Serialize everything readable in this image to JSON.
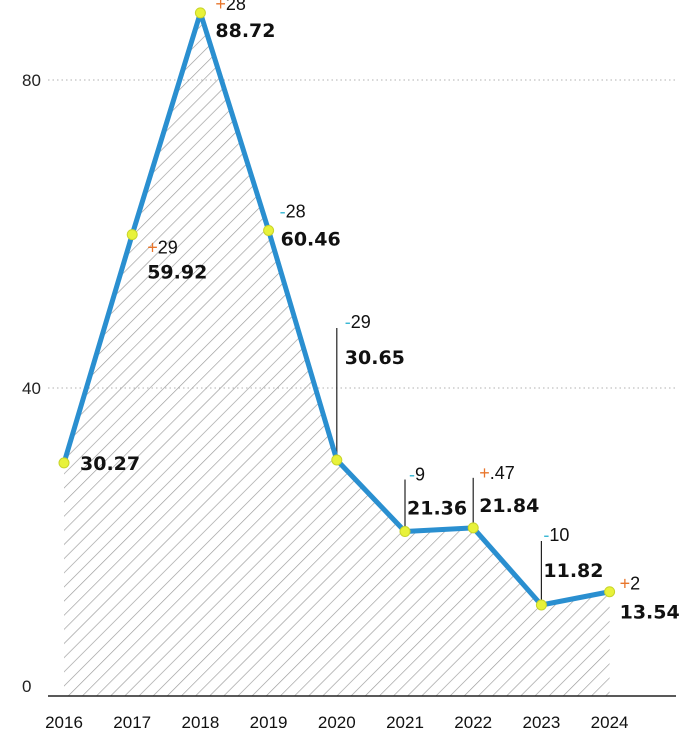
{
  "chart_data": {
    "type": "area",
    "title": "",
    "xlabel": "",
    "ylabel": "",
    "categories": [
      "2016",
      "2017",
      "2018",
      "2019",
      "2020",
      "2021",
      "2022",
      "2023",
      "2024"
    ],
    "values": [
      30.27,
      59.92,
      88.72,
      60.46,
      30.65,
      21.36,
      21.84,
      11.82,
      13.54
    ],
    "value_labels": [
      "30.27",
      "59.92",
      "88.72",
      "60.46",
      "30.65",
      "21.36",
      "21.84",
      "11.82",
      "13.54"
    ],
    "changes": [
      null,
      {
        "sign": "+",
        "num": "29"
      },
      {
        "sign": "+",
        "num": "28"
      },
      {
        "sign": "-",
        "num": "28"
      },
      {
        "sign": "-",
        "num": "29"
      },
      {
        "sign": "-",
        "num": "9"
      },
      {
        "sign": "+",
        "num": ".47"
      },
      {
        "sign": "-",
        "num": "10"
      },
      {
        "sign": "+",
        "num": "2"
      }
    ],
    "ylim": [
      0,
      92
    ],
    "yticks": [
      "0",
      "40",
      "80"
    ],
    "grid": "horizontal-dotted",
    "area_fill": "diagonal-hatch",
    "colors": {
      "line": "#2a8fd0",
      "marker": "#e8f23a",
      "positive": "#e8762c",
      "negative": "#3bb8d4",
      "hatch": "#9a9a9a",
      "grid": "#b0b0b0"
    }
  }
}
